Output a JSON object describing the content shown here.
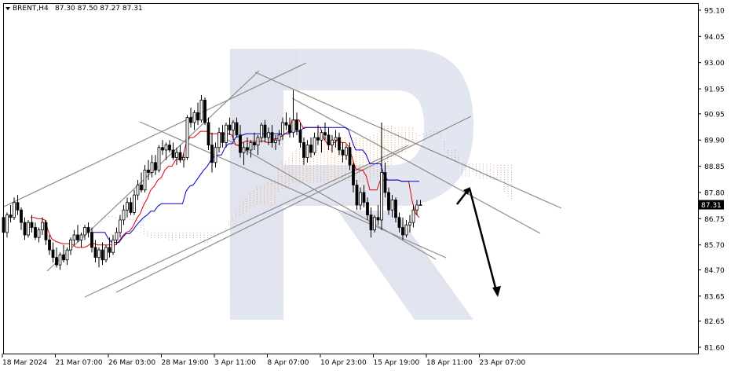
{
  "chart_data": {
    "type": "candlestick",
    "symbol_label": "BRENT,H4",
    "ohlc_label": "87.30 87.50 87.27 87.31",
    "last_price_label": "87.31",
    "last_price": 87.31,
    "ylim": [
      81.35,
      95.35
    ],
    "y_ticks": [
      "95.10",
      "94.05",
      "93.00",
      "91.95",
      "90.95",
      "89.90",
      "88.85",
      "87.80",
      "86.75",
      "85.70",
      "84.70",
      "83.65",
      "82.65",
      "81.60"
    ],
    "y_tick_values": [
      95.1,
      94.05,
      93.0,
      91.95,
      90.95,
      89.9,
      88.85,
      87.8,
      86.75,
      85.7,
      84.7,
      83.65,
      82.65,
      81.6
    ],
    "x_tick_labels": [
      "18 Mar 2024",
      "21 Mar 07:00",
      "26 Mar 03:00",
      "28 Mar 19:00",
      "3 Apr 11:00",
      "8 Apr 07:00",
      "10 Apr 23:00",
      "15 Apr 19:00",
      "18 Apr 11:00",
      "23 Apr 07:00"
    ],
    "x_tick_index": [
      0,
      15,
      30,
      45,
      60,
      75,
      90,
      105,
      120,
      135
    ],
    "candles": [
      [
        86.8,
        87.2,
        86.0,
        86.2
      ],
      [
        86.2,
        87.0,
        86.0,
        86.9
      ],
      [
        86.9,
        87.3,
        86.6,
        86.8
      ],
      [
        86.8,
        87.6,
        86.7,
        87.4
      ],
      [
        87.4,
        87.7,
        86.9,
        87.1
      ],
      [
        87.1,
        87.2,
        86.3,
        86.6
      ],
      [
        86.6,
        86.8,
        85.9,
        86.1
      ],
      [
        86.1,
        86.7,
        86.0,
        86.6
      ],
      [
        86.6,
        86.9,
        86.2,
        86.4
      ],
      [
        86.4,
        86.6,
        85.9,
        86.0
      ],
      [
        86.0,
        86.4,
        85.8,
        86.3
      ],
      [
        86.3,
        86.8,
        86.1,
        86.6
      ],
      [
        86.6,
        86.7,
        85.7,
        85.9
      ],
      [
        85.9,
        86.1,
        85.3,
        85.5
      ],
      [
        85.5,
        85.8,
        85.0,
        85.2
      ],
      [
        85.2,
        85.6,
        84.8,
        84.9
      ],
      [
        84.9,
        85.4,
        84.7,
        85.3
      ],
      [
        85.3,
        85.7,
        85.0,
        85.1
      ],
      [
        85.1,
        85.6,
        84.9,
        85.5
      ],
      [
        85.5,
        86.0,
        85.3,
        85.9
      ],
      [
        85.9,
        86.3,
        85.7,
        86.1
      ],
      [
        86.1,
        86.5,
        85.8,
        85.9
      ],
      [
        85.9,
        86.2,
        85.6,
        86.1
      ],
      [
        86.1,
        86.5,
        85.9,
        86.4
      ],
      [
        86.4,
        86.6,
        86.0,
        86.2
      ],
      [
        86.2,
        86.4,
        85.4,
        85.6
      ],
      [
        85.6,
        85.9,
        85.0,
        85.2
      ],
      [
        85.2,
        85.6,
        84.8,
        85.5
      ],
      [
        85.5,
        85.8,
        84.9,
        85.1
      ],
      [
        85.1,
        85.7,
        85.0,
        85.6
      ],
      [
        85.6,
        86.0,
        85.2,
        85.4
      ],
      [
        85.4,
        86.1,
        85.3,
        85.9
      ],
      [
        85.9,
        86.4,
        85.7,
        86.2
      ],
      [
        86.2,
        86.9,
        86.0,
        86.7
      ],
      [
        86.7,
        87.3,
        86.5,
        87.1
      ],
      [
        87.1,
        87.6,
        86.8,
        87.4
      ],
      [
        87.4,
        87.6,
        86.9,
        87.0
      ],
      [
        87.0,
        87.9,
        86.9,
        87.7
      ],
      [
        87.7,
        88.3,
        87.5,
        88.1
      ],
      [
        88.1,
        88.6,
        87.8,
        87.9
      ],
      [
        87.9,
        88.9,
        87.8,
        88.7
      ],
      [
        88.7,
        89.1,
        88.3,
        88.6
      ],
      [
        88.6,
        89.3,
        88.4,
        89.0
      ],
      [
        89.0,
        89.3,
        88.5,
        88.7
      ],
      [
        88.7,
        89.7,
        88.6,
        89.6
      ],
      [
        89.6,
        89.9,
        89.3,
        89.5
      ],
      [
        89.5,
        89.8,
        89.1,
        89.7
      ],
      [
        89.7,
        89.9,
        89.4,
        89.5
      ],
      [
        89.5,
        89.8,
        89.1,
        89.2
      ],
      [
        89.2,
        89.6,
        88.9,
        89.4
      ],
      [
        89.4,
        89.7,
        89.0,
        89.1
      ],
      [
        89.1,
        89.4,
        88.8,
        89.2
      ],
      [
        89.2,
        90.9,
        89.1,
        90.8
      ],
      [
        90.8,
        91.2,
        90.4,
        90.6
      ],
      [
        90.6,
        91.1,
        90.3,
        91.0
      ],
      [
        91.0,
        91.4,
        90.5,
        90.7
      ],
      [
        90.7,
        91.7,
        90.6,
        91.5
      ],
      [
        91.5,
        91.6,
        90.5,
        90.6
      ],
      [
        90.6,
        90.8,
        89.5,
        89.7
      ],
      [
        89.7,
        90.2,
        88.6,
        89.0
      ],
      [
        89.0,
        89.8,
        88.8,
        89.6
      ],
      [
        89.6,
        90.4,
        89.4,
        90.2
      ],
      [
        90.2,
        90.5,
        89.6,
        89.8
      ],
      [
        89.8,
        90.6,
        89.6,
        90.5
      ],
      [
        90.5,
        90.8,
        90.1,
        90.3
      ],
      [
        90.3,
        90.7,
        89.9,
        90.6
      ],
      [
        90.6,
        90.8,
        90.0,
        90.1
      ],
      [
        90.1,
        90.5,
        89.2,
        89.4
      ],
      [
        89.4,
        89.8,
        88.9,
        89.6
      ],
      [
        89.6,
        90.0,
        89.3,
        89.5
      ],
      [
        89.5,
        89.9,
        89.2,
        89.8
      ],
      [
        89.8,
        90.2,
        89.5,
        89.7
      ],
      [
        89.7,
        90.1,
        89.3,
        90.0
      ],
      [
        90.0,
        90.6,
        89.8,
        90.5
      ],
      [
        90.5,
        90.7,
        89.8,
        90.0
      ],
      [
        90.0,
        90.4,
        89.7,
        90.2
      ],
      [
        90.2,
        90.5,
        89.6,
        89.8
      ],
      [
        89.8,
        90.1,
        89.5,
        89.9
      ],
      [
        89.9,
        90.3,
        89.7,
        90.1
      ],
      [
        90.1,
        90.8,
        89.9,
        90.6
      ],
      [
        90.6,
        91.0,
        90.3,
        90.5
      ],
      [
        90.5,
        90.8,
        90.0,
        90.2
      ],
      [
        90.2,
        91.9,
        90.0,
        90.7
      ],
      [
        90.7,
        91.0,
        90.1,
        90.3
      ],
      [
        90.3,
        90.6,
        89.6,
        89.8
      ],
      [
        89.8,
        90.0,
        88.9,
        89.2
      ],
      [
        89.2,
        89.9,
        89.0,
        89.7
      ],
      [
        89.7,
        90.0,
        89.2,
        89.4
      ],
      [
        89.4,
        90.2,
        89.3,
        90.0
      ],
      [
        90.0,
        90.5,
        89.7,
        89.9
      ],
      [
        89.9,
        90.3,
        89.4,
        90.2
      ],
      [
        90.2,
        90.6,
        89.9,
        90.1
      ],
      [
        90.1,
        90.4,
        89.5,
        89.7
      ],
      [
        89.7,
        90.1,
        89.4,
        89.9
      ],
      [
        89.9,
        90.3,
        89.6,
        90.0
      ],
      [
        90.0,
        90.2,
        89.3,
        89.5
      ],
      [
        89.5,
        89.8,
        89.0,
        89.3
      ],
      [
        89.3,
        89.7,
        89.1,
        89.6
      ],
      [
        89.6,
        89.8,
        88.7,
        88.9
      ],
      [
        88.9,
        89.0,
        87.8,
        88.1
      ],
      [
        88.1,
        88.3,
        87.1,
        87.3
      ],
      [
        87.3,
        88.0,
        87.1,
        87.8
      ],
      [
        87.8,
        88.1,
        87.2,
        87.4
      ],
      [
        87.4,
        87.6,
        86.7,
        86.9
      ],
      [
        86.9,
        87.2,
        86.0,
        86.3
      ],
      [
        86.3,
        86.9,
        86.2,
        86.8
      ],
      [
        86.8,
        87.3,
        86.5,
        86.7
      ],
      [
        86.7,
        90.6,
        86.3,
        88.6
      ],
      [
        88.6,
        89.0,
        87.6,
        87.8
      ],
      [
        87.8,
        88.0,
        86.9,
        87.1
      ],
      [
        87.1,
        87.7,
        86.8,
        87.5
      ],
      [
        87.5,
        87.6,
        86.6,
        86.8
      ],
      [
        86.8,
        87.0,
        86.2,
        86.4
      ],
      [
        86.4,
        86.8,
        85.9,
        86.1
      ],
      [
        86.1,
        86.7,
        86.0,
        86.5
      ],
      [
        86.5,
        86.9,
        86.2,
        86.6
      ],
      [
        86.6,
        87.3,
        86.4,
        87.1
      ],
      [
        87.1,
        87.5,
        86.9,
        87.3
      ],
      [
        87.3,
        87.5,
        87.27,
        87.31
      ]
    ],
    "tenkan_kijun_note": "",
    "annotations": []
  }
}
